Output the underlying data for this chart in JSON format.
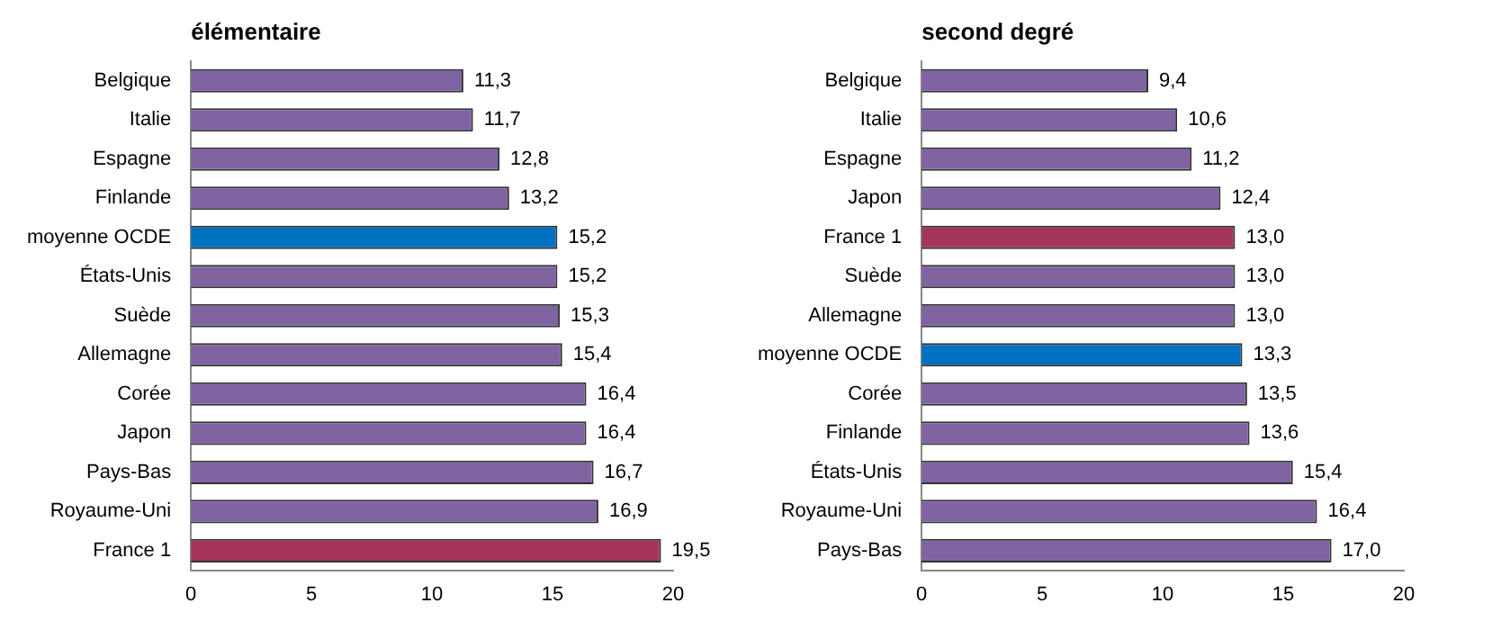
{
  "chart_data": [
    {
      "type": "bar",
      "orientation": "horizontal",
      "title": "élémentaire",
      "categories": [
        "Belgique",
        "Italie",
        "Espagne",
        "Finlande",
        "moyenne OCDE",
        "États-Unis",
        "Suède",
        "Allemagne",
        "Corée",
        "Japon",
        "Pays-Bas",
        "Royaume-Uni",
        "France 1"
      ],
      "values": [
        11.3,
        11.7,
        12.8,
        13.2,
        15.2,
        15.2,
        15.3,
        15.4,
        16.4,
        16.4,
        16.7,
        16.9,
        19.5
      ],
      "value_labels": [
        "11,3",
        "11,7",
        "12,8",
        "13,2",
        "15,2",
        "15,2",
        "15,3",
        "15,4",
        "16,4",
        "16,4",
        "16,7",
        "16,9",
        "19,5"
      ],
      "colors": [
        "#8064a2",
        "#8064a2",
        "#8064a2",
        "#8064a2",
        "#0070c0",
        "#8064a2",
        "#8064a2",
        "#8064a2",
        "#8064a2",
        "#8064a2",
        "#8064a2",
        "#8064a2",
        "#a5345a"
      ],
      "xlim": [
        0,
        20
      ],
      "xticks": [
        0,
        5,
        10,
        15,
        20
      ],
      "grid": false,
      "legend": false
    },
    {
      "type": "bar",
      "orientation": "horizontal",
      "title": "second degré",
      "categories": [
        "Belgique",
        "Italie",
        "Espagne",
        "Japon",
        "France 1",
        "Suède",
        "Allemagne",
        "moyenne OCDE",
        "Corée",
        "Finlande",
        "États-Unis",
        "Royaume-Uni",
        "Pays-Bas"
      ],
      "values": [
        9.4,
        10.6,
        11.2,
        12.4,
        13.0,
        13.0,
        13.0,
        13.3,
        13.5,
        13.6,
        15.4,
        16.4,
        17.0
      ],
      "value_labels": [
        "9,4",
        "10,6",
        "11,2",
        "12,4",
        "13,0",
        "13,0",
        "13,0",
        "13,3",
        "13,5",
        "13,6",
        "15,4",
        "16,4",
        "17,0"
      ],
      "colors": [
        "#8064a2",
        "#8064a2",
        "#8064a2",
        "#8064a2",
        "#a5345a",
        "#8064a2",
        "#8064a2",
        "#0070c0",
        "#8064a2",
        "#8064a2",
        "#8064a2",
        "#8064a2",
        "#8064a2"
      ],
      "xlim": [
        0,
        20
      ],
      "xticks": [
        0,
        5,
        10,
        15,
        20
      ],
      "grid": false,
      "legend": false
    }
  ]
}
